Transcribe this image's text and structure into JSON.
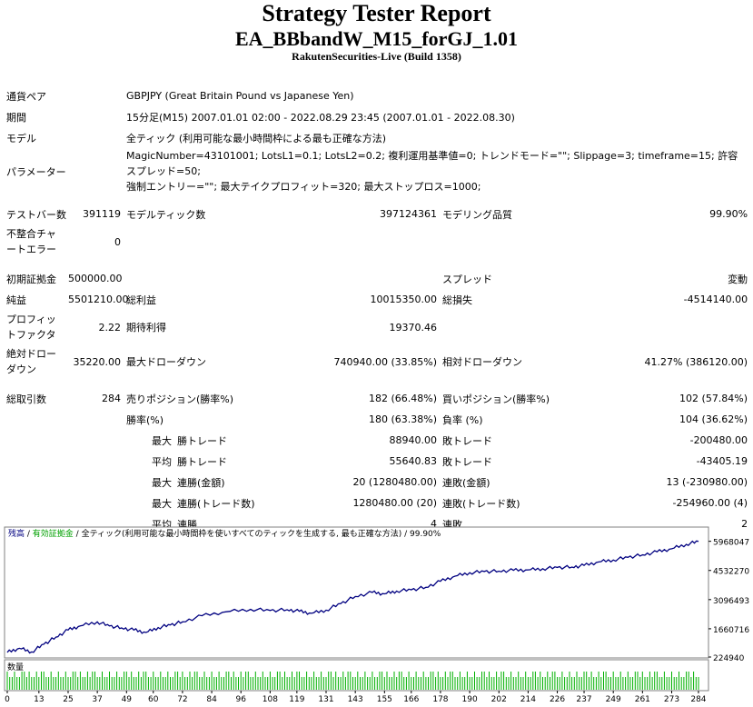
{
  "header": {
    "title": "Strategy Tester Report",
    "expert": "EA_BBbandW_M15_forGJ_1.01",
    "server": "RakutenSecurities-Live (Build 1358)"
  },
  "info": {
    "symbol_label": "通貨ペア",
    "symbol_value": "GBPJPY (Great Britain Pound vs Japanese Yen)",
    "period_label": "期間",
    "period_value": "15分足(M15) 2007.01.01 02:00 - 2022.08.29 23:45 (2007.01.01 - 2022.08.30)",
    "model_label": "モデル",
    "model_value": "全ティック (利用可能な最小時間枠による最も正確な方法)",
    "params_label": "パラメーター",
    "params_line1": "MagicNumber=43101001; LotsL1=0.1; LotsL2=0.2; 複利運用基準値=0; トレンドモード=\"\"; Slippage=3; timeframe=15; 許容スプレッド=50;",
    "params_line2": "強制エントリー=\"\"; 最大テイクプロフィット=320; 最大ストップロス=1000;"
  },
  "stats": {
    "bars_label": "テストバー数",
    "bars": "391119",
    "ticks_label": "モデルティック数",
    "ticks": "397124361",
    "quality_label": "モデリング品質",
    "quality": "99.90%",
    "mismatch_label": "不整合チャートエラー",
    "mismatch": "0",
    "deposit_label": "初期証拠金",
    "deposit": "500000.00",
    "spread_label": "スプレッド",
    "spread": "変動",
    "net_label": "純益",
    "net": "5501210.00",
    "gross_profit_label": "総利益",
    "gross_profit": "10015350.00",
    "gross_loss_label": "総損失",
    "gross_loss": "-4514140.00",
    "pf_label": "プロフィットファクタ",
    "pf": "2.22",
    "payoff_label": "期待利得",
    "payoff": "19370.46",
    "abs_dd_label": "絶対ドローダウン",
    "abs_dd": "35220.00",
    "max_dd_label": "最大ドローダウン",
    "max_dd": "740940.00 (33.85%)",
    "rel_dd_label": "相対ドローダウン",
    "rel_dd": "41.27% (386120.00)",
    "trades_label": "総取引数",
    "trades": "284",
    "short_label": "売りポジション(勝率%)",
    "short": "182 (66.48%)",
    "long_label": "買いポジション(勝率%)",
    "long": "102 (57.84%)",
    "win_label": "勝率(%)",
    "win": "180 (63.38%)",
    "loss_label": "負率 (%)",
    "loss": "104 (36.62%)",
    "max_prefix": "最大",
    "avg_prefix": "平均",
    "largest_profit_label": "勝トレード",
    "largest_profit": "88940.00",
    "largest_loss_label": "敗トレード",
    "largest_loss": "-200480.00",
    "avg_profit_label": "勝トレード",
    "avg_profit": "55640.83",
    "avg_loss_label": "敗トレード",
    "avg_loss": "-43405.19",
    "cons_wins_money_label": "連勝(金額)",
    "cons_wins_money": "20 (1280480.00)",
    "cons_losses_money_label": "連敗(金額)",
    "cons_losses_money": "13 (-230980.00)",
    "cons_profit_label": "連勝(トレード数)",
    "cons_profit": "1280480.00 (20)",
    "cons_loss_label": "連敗(トレード数)",
    "cons_loss": "-254960.00 (4)",
    "avg_wins_label": "連勝",
    "avg_wins": "4",
    "avg_losses_label": "連敗",
    "avg_losses": "2"
  },
  "chart_data": {
    "type": "line",
    "legend": {
      "balance": "残高",
      "equity": "有効証拠金",
      "model": "全ティック(利用可能な最小時間枠を使いすべてのティックを生成する, 最も正確な方法)",
      "quality": "99.90%"
    },
    "volume_label": "数量",
    "colors": {
      "balance": "#000080",
      "equity": "#00a000",
      "volume": "#00b000"
    },
    "y_ticks": [
      224940,
      1660716,
      3096493,
      4532270,
      5968047
    ],
    "ylim": [
      224940,
      6400000
    ],
    "x_ticks": [
      0,
      13,
      25,
      37,
      49,
      60,
      72,
      84,
      96,
      108,
      119,
      131,
      143,
      155,
      166,
      178,
      190,
      202,
      214,
      226,
      237,
      249,
      261,
      273,
      284
    ],
    "xlim": [
      0,
      287
    ],
    "series": [
      {
        "name": "残高",
        "x": [
          0,
          5,
          10,
          15,
          20,
          25,
          30,
          37,
          42,
          47,
          52,
          57,
          62,
          67,
          72,
          80,
          90,
          100,
          108,
          115,
          120,
          125,
          131,
          137,
          143,
          150,
          155,
          160,
          166,
          172,
          178,
          184,
          190,
          196,
          202,
          208,
          214,
          220,
          226,
          232,
          237,
          243,
          249,
          255,
          261,
          267,
          273,
          279,
          284
        ],
        "y": [
          500000,
          700000,
          520000,
          900000,
          1250000,
          1600000,
          1800000,
          2000000,
          1800000,
          1700000,
          1600000,
          1480000,
          1720000,
          1850000,
          2000000,
          2300000,
          2500000,
          2620000,
          2560000,
          2600000,
          2520000,
          2420000,
          2580000,
          2900000,
          3250000,
          3450000,
          3380000,
          3520000,
          3580000,
          3700000,
          4000000,
          4250000,
          4420000,
          4480000,
          4500000,
          4540000,
          4560000,
          4620000,
          4680000,
          4700000,
          4780000,
          4950000,
          5050000,
          5180000,
          5300000,
          5450000,
          5600000,
          5820000,
          5968047
        ]
      }
    ],
    "volume": [
      0.1,
      0.1,
      0.2
    ]
  }
}
